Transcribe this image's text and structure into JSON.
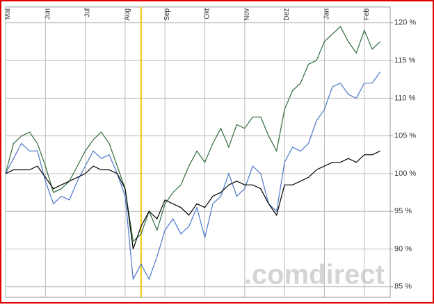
{
  "chart_data": {
    "type": "line",
    "x": [
      0,
      2,
      4,
      6,
      8,
      10,
      12,
      14,
      16,
      18,
      20,
      22,
      24,
      26,
      28,
      30,
      32,
      34,
      36,
      38,
      40,
      42,
      44,
      46,
      48,
      50,
      52,
      54,
      56,
      58,
      60,
      62,
      64,
      66,
      68,
      70,
      72,
      74,
      76,
      78,
      80,
      82,
      84,
      86,
      88,
      90,
      92,
      94
    ],
    "series": [
      {
        "color": "#2e6b3a",
        "values": [
          100,
          104,
          105,
          105.5,
          104,
          101,
          97.5,
          98,
          99,
          101,
          103,
          104.5,
          105.5,
          104,
          101,
          98,
          91,
          92,
          95,
          92.5,
          96,
          97.5,
          98.5,
          101,
          103,
          101.5,
          104,
          106,
          103.5,
          106.5,
          106,
          107.5,
          107.5,
          105,
          103,
          108.5,
          111,
          112,
          114.5,
          115,
          117.5,
          118.5,
          119.5,
          117.5,
          116,
          119,
          116.5,
          117.5
        ]
      },
      {
        "color": "#4a76c8",
        "values": [
          100,
          102,
          104,
          103,
          103,
          99,
          96,
          97,
          96.5,
          99,
          101,
          103,
          102,
          102.5,
          100,
          97,
          86,
          88,
          86,
          89,
          92.5,
          94,
          92,
          93,
          95.5,
          91.5,
          96,
          97,
          100,
          97,
          98,
          101,
          100,
          96,
          95,
          101.5,
          103.5,
          103,
          104,
          107,
          108.5,
          111.5,
          112,
          110.5,
          110,
          112,
          112,
          113.5
        ]
      },
      {
        "color": "#000000",
        "values": [
          100,
          100.5,
          100.5,
          100.5,
          101,
          99.5,
          98,
          98.5,
          99,
          99.5,
          100,
          101,
          100.5,
          100.5,
          100,
          98,
          90,
          93,
          95,
          94,
          96.5,
          96,
          95.5,
          94.5,
          96,
          95.5,
          97,
          97.5,
          98.5,
          99,
          98.5,
          98.5,
          98,
          96,
          94.5,
          98.5,
          98.5,
          99,
          99.5,
          100.5,
          101,
          101.5,
          101.5,
          102,
          101.5,
          102.5,
          102.5,
          103
        ]
      }
    ],
    "xlim": [
      0,
      96.5
    ],
    "xticks": [
      {
        "value": 0,
        "label": "Mai"
      },
      {
        "value": 10,
        "label": "Jun"
      },
      {
        "value": 20,
        "label": "Jul"
      },
      {
        "value": 30,
        "label": "Aug"
      },
      {
        "value": 40,
        "label": "Sep"
      },
      {
        "value": 50,
        "label": "Okt"
      },
      {
        "value": 60,
        "label": "Nov"
      },
      {
        "value": 70,
        "label": "Dez"
      },
      {
        "value": 80,
        "label": "Jan"
      },
      {
        "value": 90,
        "label": "Feb"
      }
    ],
    "ylim": [
      83.6,
      122.1
    ],
    "yticks": [
      {
        "value": 85,
        "label": "85 %"
      },
      {
        "value": 90,
        "label": "90 %"
      },
      {
        "value": 95,
        "label": "95 %"
      },
      {
        "value": 100,
        "label": "100 %"
      },
      {
        "value": 105,
        "label": "105 %"
      },
      {
        "value": 110,
        "label": "110 %"
      },
      {
        "value": 115,
        "label": "115 %"
      },
      {
        "value": 120,
        "label": "120 %"
      }
    ],
    "grid": true,
    "marker_line": {
      "x": 34,
      "color": "#f5c400"
    },
    "watermark": ".comdirect"
  }
}
